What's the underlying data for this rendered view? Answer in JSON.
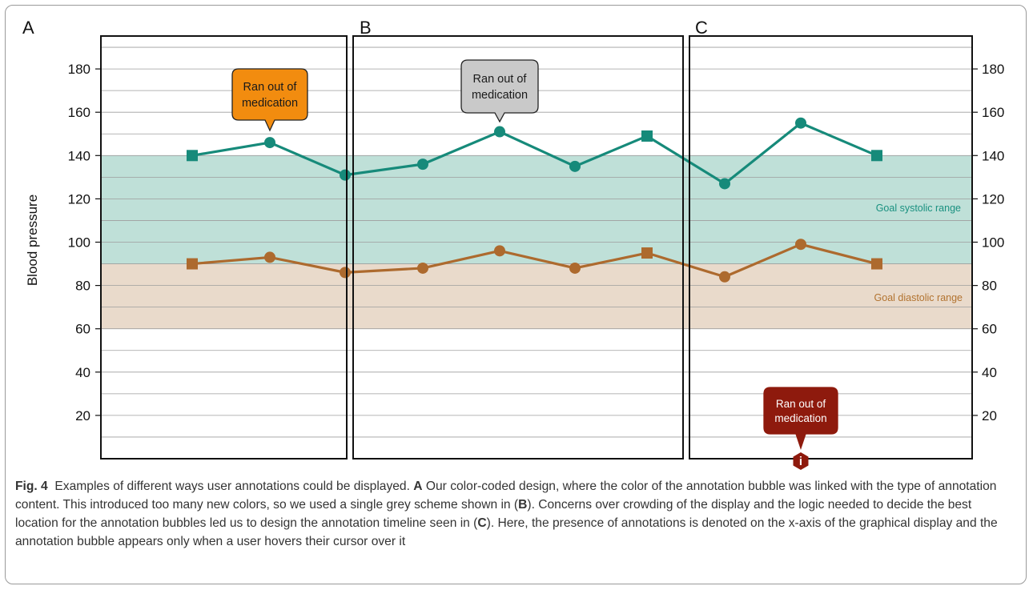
{
  "chart_data": {
    "type": "line",
    "ylabel": "Blood pressure",
    "ylim": [
      0,
      190
    ],
    "yticks": [
      20,
      40,
      60,
      80,
      100,
      120,
      140,
      160,
      180
    ],
    "grid": true,
    "panel_letters": [
      "A",
      "B",
      "C"
    ],
    "bands": [
      {
        "label": "Goal systolic range",
        "from": 90,
        "to": 140,
        "color": "#bfe0d8",
        "label_color": "#1a9180"
      },
      {
        "label": "Goal diastolic range",
        "from": 60,
        "to": 90,
        "color": "#e9dacb",
        "label_color": "#b27330"
      }
    ],
    "series": [
      {
        "color": "#168a7a",
        "points": [
          {
            "y": 140,
            "marker": "square"
          },
          {
            "y": 146,
            "marker": "circle"
          },
          {
            "y": 131,
            "marker": "circle"
          },
          {
            "y": 136,
            "marker": "circle"
          },
          {
            "y": 151,
            "marker": "circle"
          },
          {
            "y": 135,
            "marker": "circle"
          },
          {
            "y": 149,
            "marker": "square"
          },
          {
            "y": 127,
            "marker": "circle"
          },
          {
            "y": 155,
            "marker": "circle"
          },
          {
            "y": 140,
            "marker": "square"
          }
        ]
      },
      {
        "color": "#ad6a2e",
        "points": [
          {
            "y": 90,
            "marker": "square"
          },
          {
            "y": 93,
            "marker": "circle"
          },
          {
            "y": 86,
            "marker": "circle"
          },
          {
            "y": 88,
            "marker": "circle"
          },
          {
            "y": 96,
            "marker": "circle"
          },
          {
            "y": 88,
            "marker": "circle"
          },
          {
            "y": 95,
            "marker": "square"
          },
          {
            "y": 84,
            "marker": "circle"
          },
          {
            "y": 99,
            "marker": "circle"
          },
          {
            "y": 90,
            "marker": "square"
          }
        ]
      }
    ],
    "annotations": [
      {
        "panel": "A",
        "text_lines": [
          "Ran out of",
          "medication"
        ],
        "fill": "#f28c0f",
        "text_color": "#1a1a1a"
      },
      {
        "panel": "B",
        "text_lines": [
          "Ran out of",
          "medication"
        ],
        "fill": "#c9c9c9",
        "text_color": "#1a1a1a"
      },
      {
        "panel": "C",
        "text_lines": [
          "Ran out of",
          "medication"
        ],
        "fill": "#8e1a0d",
        "text_color": "#ffffff",
        "marker_glyph": "i"
      }
    ]
  },
  "caption": {
    "label": "Fig. 4",
    "parts": [
      {
        "t": "Examples of different ways user annotations could be displayed. ",
        "b": false
      },
      {
        "t": "A",
        "b": true
      },
      {
        "t": " Our color-coded design, where the color of the annotation bubble was linked with the type of annotation content. This introduced too many new colors, so we used a single grey scheme shown in (",
        "b": false
      },
      {
        "t": "B",
        "b": true
      },
      {
        "t": "). Concerns over crowding of the display and the logic needed to decide the best location for the annotation bubbles led us to design the annotation timeline seen in (",
        "b": false
      },
      {
        "t": "C",
        "b": true
      },
      {
        "t": "). Here, the presence of annotations is denoted on the x-axis of the graphical display and the annotation bubble appears only when a user hovers their cursor over it",
        "b": false
      }
    ]
  }
}
